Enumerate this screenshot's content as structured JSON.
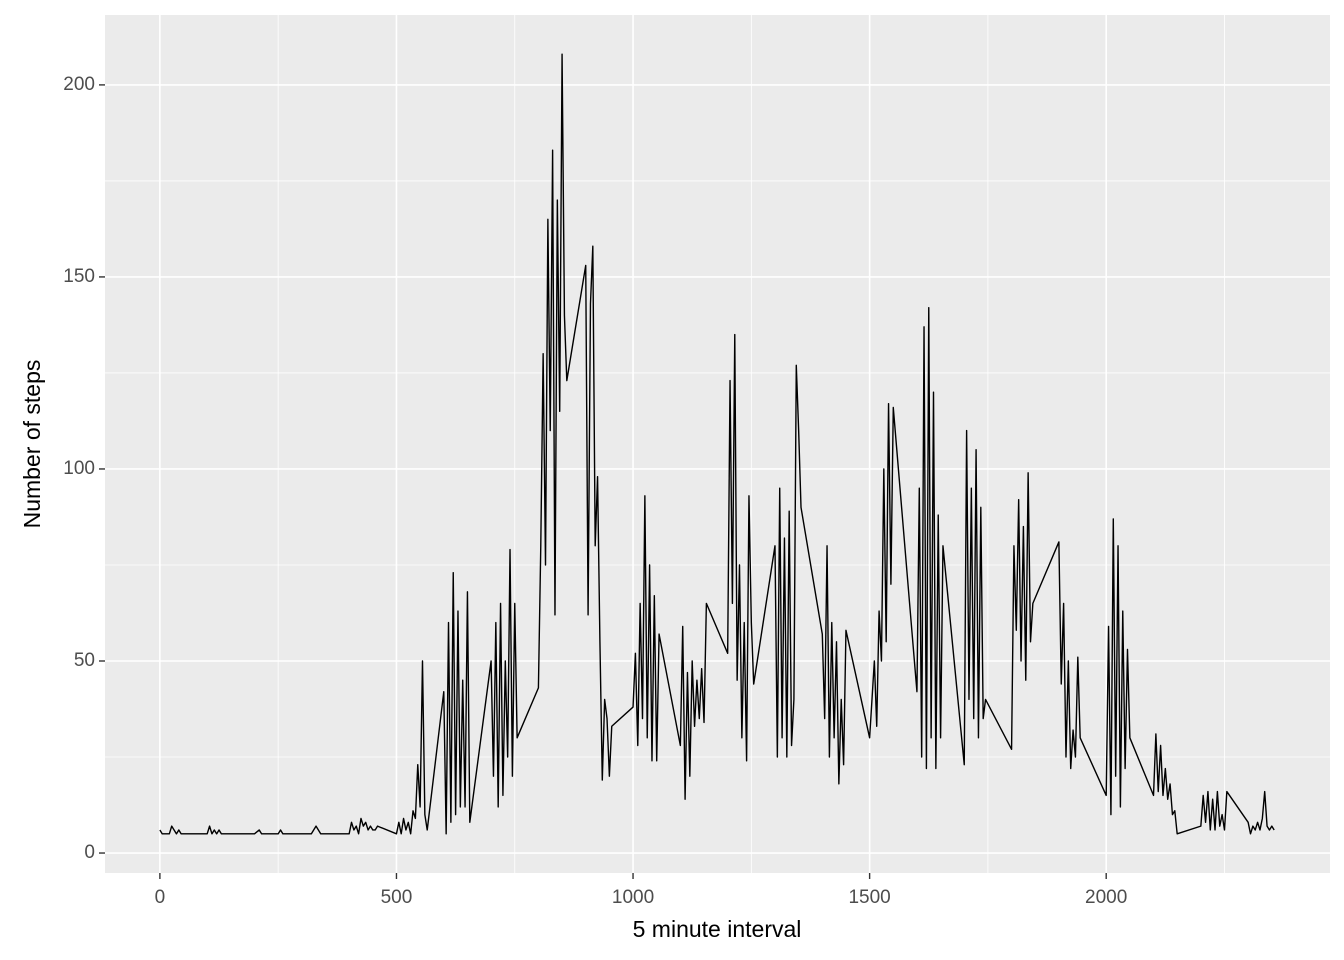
{
  "chart_data": {
    "type": "line",
    "x_label": "5 minute interval",
    "y_label": "Number of steps",
    "color": "#000000",
    "xlim": [
      -116,
      2473
    ],
    "ylim": [
      -5.2,
      218.2
    ],
    "xticks": [
      0,
      500,
      1000,
      1500,
      2000
    ],
    "yticks": [
      0,
      50,
      100,
      150,
      200
    ],
    "minor_xticks": [
      250,
      750,
      1250,
      1750,
      2250
    ],
    "minor_yticks": [
      25,
      75,
      125,
      175
    ],
    "grid": true,
    "x": [
      0,
      5,
      10,
      15,
      20,
      25,
      30,
      35,
      40,
      45,
      50,
      100,
      105,
      110,
      115,
      120,
      125,
      130,
      135,
      140,
      150,
      200,
      210,
      215,
      250,
      255,
      260,
      300,
      320,
      325,
      330,
      335,
      340,
      400,
      405,
      410,
      415,
      420,
      425,
      430,
      435,
      440,
      445,
      450,
      455,
      460,
      500,
      505,
      510,
      515,
      520,
      525,
      530,
      535,
      540,
      545,
      550,
      555,
      560,
      565,
      600,
      605,
      610,
      615,
      620,
      625,
      630,
      635,
      640,
      645,
      650,
      655,
      700,
      705,
      710,
      715,
      720,
      725,
      730,
      735,
      740,
      745,
      750,
      755,
      800,
      805,
      810,
      815,
      820,
      825,
      830,
      835,
      840,
      845,
      850,
      855,
      860,
      900,
      905,
      910,
      915,
      920,
      925,
      930,
      935,
      940,
      945,
      950,
      955,
      1000,
      1005,
      1010,
      1015,
      1020,
      1025,
      1030,
      1035,
      1040,
      1045,
      1050,
      1055,
      1100,
      1105,
      1110,
      1115,
      1120,
      1125,
      1130,
      1135,
      1140,
      1145,
      1150,
      1155,
      1200,
      1205,
      1210,
      1215,
      1220,
      1225,
      1230,
      1235,
      1240,
      1245,
      1250,
      1255,
      1300,
      1305,
      1310,
      1315,
      1320,
      1325,
      1330,
      1335,
      1340,
      1345,
      1350,
      1355,
      1400,
      1405,
      1410,
      1415,
      1420,
      1425,
      1430,
      1435,
      1440,
      1445,
      1450,
      1500,
      1505,
      1510,
      1515,
      1520,
      1525,
      1530,
      1535,
      1540,
      1545,
      1550,
      1600,
      1605,
      1610,
      1615,
      1620,
      1625,
      1630,
      1635,
      1640,
      1645,
      1650,
      1655,
      1700,
      1705,
      1710,
      1715,
      1720,
      1725,
      1730,
      1735,
      1740,
      1745,
      1800,
      1805,
      1810,
      1815,
      1820,
      1825,
      1830,
      1835,
      1840,
      1845,
      1900,
      1905,
      1910,
      1915,
      1920,
      1925,
      1930,
      1935,
      1940,
      1945,
      2000,
      2005,
      2010,
      2015,
      2020,
      2025,
      2030,
      2035,
      2040,
      2045,
      2050,
      2100,
      2105,
      2110,
      2115,
      2120,
      2125,
      2130,
      2135,
      2140,
      2145,
      2150,
      2200,
      2205,
      2210,
      2215,
      2220,
      2225,
      2230,
      2235,
      2240,
      2245,
      2250,
      2255,
      2300,
      2305,
      2310,
      2315,
      2320,
      2325,
      2330,
      2335,
      2340,
      2345,
      2350,
      2355
    ],
    "values": [
      6,
      5,
      5,
      5,
      5,
      7,
      6,
      5,
      6,
      5,
      5,
      5,
      7,
      5,
      6,
      5,
      6,
      5,
      5,
      5,
      5,
      5,
      6,
      5,
      5,
      6,
      5,
      5,
      5,
      6,
      7,
      6,
      5,
      5,
      8,
      6,
      7,
      5,
      9,
      7,
      8,
      6,
      7,
      6,
      6,
      7,
      5,
      8,
      5,
      9,
      6,
      8,
      5,
      11,
      9,
      23,
      12,
      50,
      10,
      6,
      42,
      5,
      60,
      8,
      73,
      10,
      63,
      12,
      45,
      12,
      68,
      8,
      50,
      20,
      60,
      12,
      65,
      15,
      50,
      25,
      79,
      20,
      65,
      30,
      43,
      80,
      130,
      75,
      165,
      110,
      183,
      62,
      170,
      115,
      208,
      140,
      123,
      153,
      62,
      143,
      158,
      80,
      98,
      55,
      19,
      40,
      35,
      20,
      33,
      38,
      52,
      28,
      65,
      35,
      93,
      30,
      75,
      24,
      67,
      24,
      57,
      28,
      59,
      14,
      47,
      20,
      50,
      33,
      45,
      35,
      48,
      34,
      65,
      52,
      123,
      65,
      135,
      45,
      75,
      30,
      60,
      24,
      93,
      60,
      44,
      80,
      25,
      95,
      30,
      82,
      25,
      89,
      28,
      40,
      127,
      110,
      90,
      57,
      35,
      80,
      25,
      60,
      30,
      55,
      18,
      40,
      23,
      58,
      30,
      40,
      50,
      33,
      63,
      50,
      100,
      55,
      117,
      70,
      116,
      42,
      95,
      25,
      137,
      22,
      142,
      30,
      120,
      22,
      88,
      30,
      80,
      23,
      110,
      40,
      95,
      35,
      105,
      30,
      90,
      35,
      40,
      27,
      80,
      58,
      92,
      50,
      85,
      45,
      99,
      55,
      65,
      81,
      44,
      65,
      25,
      50,
      22,
      32,
      25,
      51,
      30,
      15,
      59,
      10,
      87,
      20,
      80,
      12,
      63,
      22,
      53,
      30,
      15,
      31,
      16,
      28,
      15,
      22,
      14,
      18,
      10,
      11,
      5,
      7,
      15,
      8,
      16,
      6,
      14,
      6,
      16,
      7,
      10,
      6,
      16,
      8,
      5,
      7,
      6,
      8,
      6,
      9,
      16,
      7,
      6,
      7,
      6
    ]
  }
}
